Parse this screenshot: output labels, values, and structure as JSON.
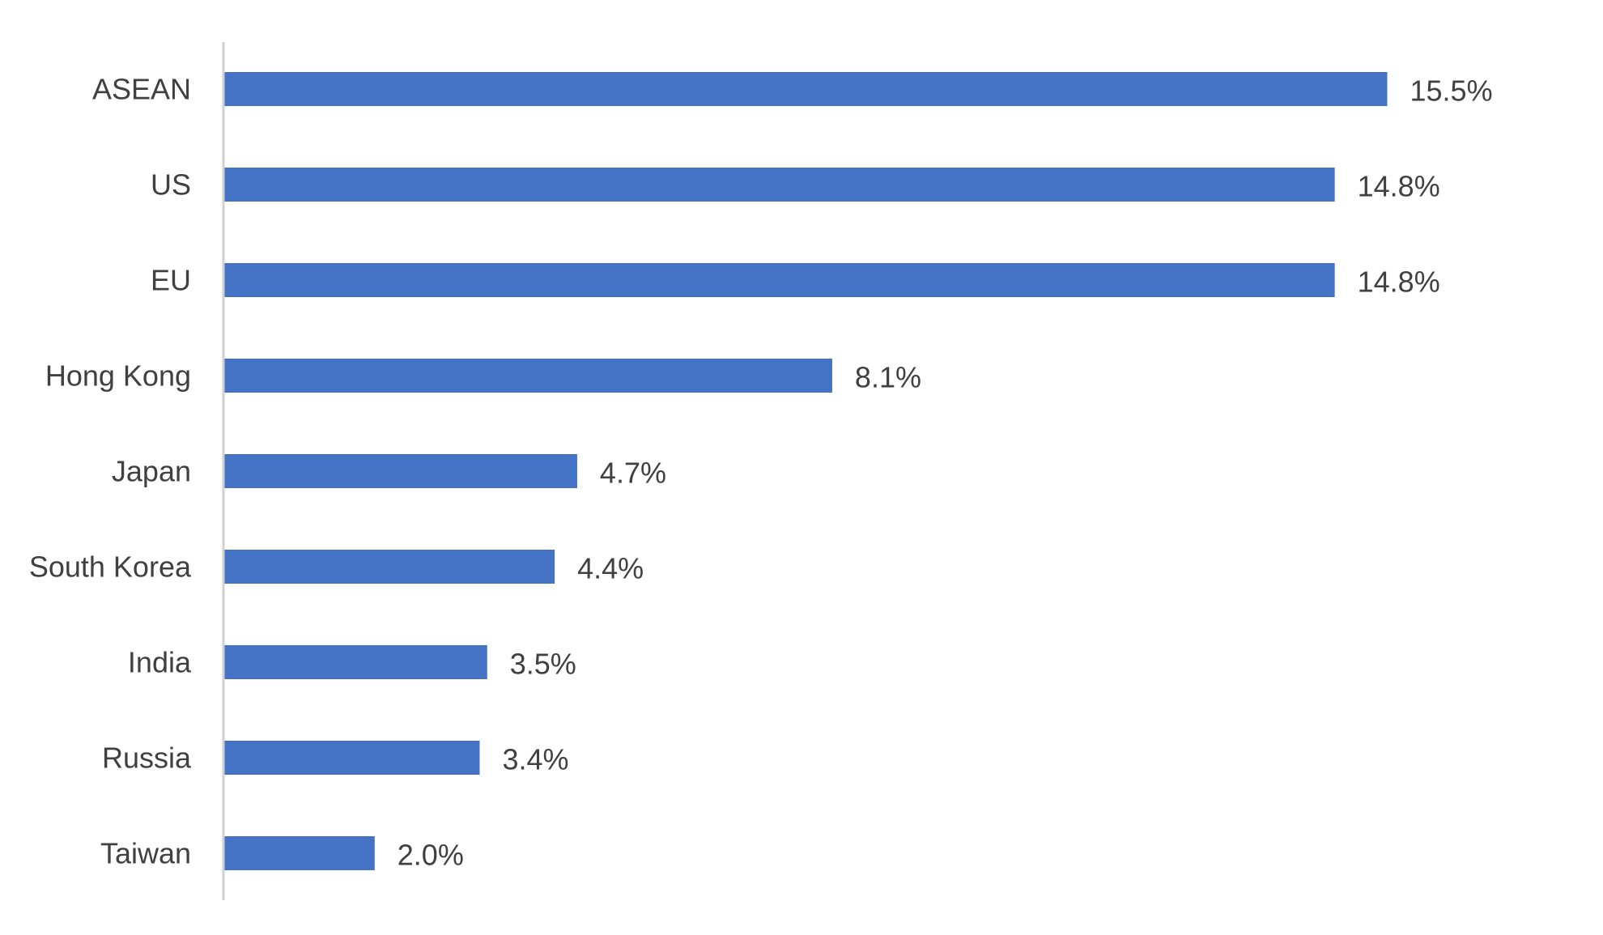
{
  "chart_data": {
    "type": "bar",
    "orientation": "horizontal",
    "categories": [
      "ASEAN",
      "US",
      "EU",
      "Hong Kong",
      "Japan",
      "South Korea",
      "India",
      "Russia",
      "Taiwan"
    ],
    "values": [
      15.5,
      14.8,
      14.8,
      8.1,
      4.7,
      4.4,
      3.5,
      3.4,
      2.0
    ],
    "data_labels": [
      "15.5%",
      "14.8%",
      "14.8%",
      "8.1%",
      "4.7%",
      "4.4%",
      "3.5%",
      "3.4%",
      "2.0%"
    ],
    "title": "",
    "xlabel": "",
    "ylabel": "",
    "xlim": [
      0,
      15.5
    ],
    "grid": false,
    "legend": "none",
    "bar_color": "#4472C4",
    "axis_color": "#D0D0D0",
    "text_color": "#404040"
  }
}
